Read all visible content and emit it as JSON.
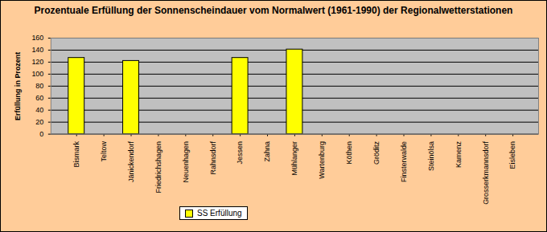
{
  "chart_data": {
    "type": "bar",
    "title": "Prozentuale Erfüllung der Sonnenscheindauer vom Normalwert (1961-1990) der Regionalwetterstationen",
    "y_label": "Erfüllung in Prozent",
    "categories": [
      "Bismark",
      "Teltow",
      "Jänickendorf",
      "Friedrichshagen",
      "Neuenhagen",
      "Rahnsdorf",
      "Jessen",
      "Zahna",
      "Mühlanger",
      "Wartenburg",
      "Köthen",
      "Gröditz",
      "Finsterwalde",
      "Steinölsa",
      "Kamenz",
      "Grosserkmannsdorf",
      "Eisleben"
    ],
    "series": [
      {
        "name": "SS Erfüllung",
        "color": "#FFFF00",
        "values": [
          127,
          null,
          122,
          null,
          null,
          null,
          127,
          null,
          141,
          null,
          null,
          null,
          null,
          null,
          null,
          null,
          null
        ]
      }
    ],
    "ylim": [
      0,
      160
    ],
    "yticks": [
      0,
      20,
      40,
      60,
      80,
      100,
      120,
      140,
      160
    ],
    "grid": true,
    "legend": "bottom"
  }
}
